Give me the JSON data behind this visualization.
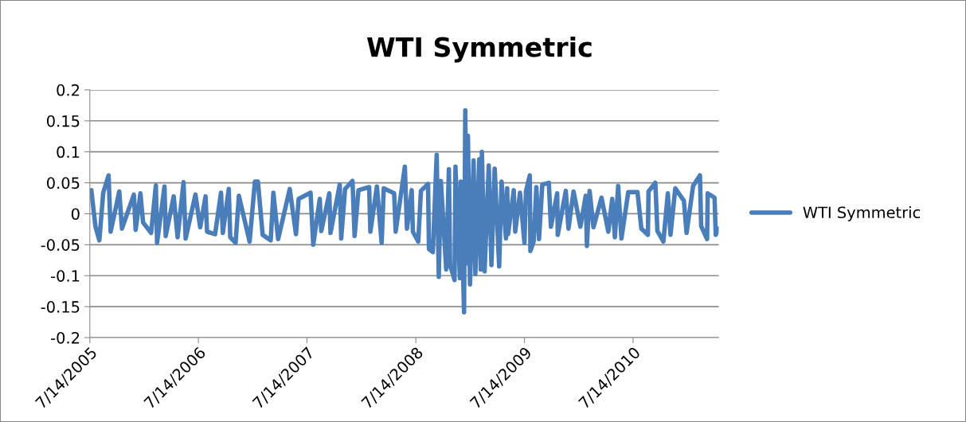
{
  "chart_data": {
    "type": "line",
    "title": "WTI Symmetric",
    "x": [
      "2005-07-19",
      "2005-08-02",
      "2005-08-15",
      "2005-08-28",
      "2005-09-15",
      "2005-09-22",
      "2005-10-21",
      "2005-10-30",
      "2005-12-09",
      "2005-12-15",
      "2005-12-31",
      "2006-01-09",
      "2006-02-05",
      "2006-02-21",
      "2006-02-25",
      "2006-03-22",
      "2006-03-26",
      "2006-04-22",
      "2006-05-05",
      "2006-05-25",
      "2006-06-01",
      "2006-07-04",
      "2006-07-20",
      "2006-08-07",
      "2006-08-12",
      "2006-09-08",
      "2006-09-28",
      "2006-10-04",
      "2006-10-24",
      "2006-10-29",
      "2006-11-16",
      "2006-11-27",
      "2007-01-02",
      "2007-01-20",
      "2007-01-30",
      "2007-02-15",
      "2007-03-14",
      "2007-03-23",
      "2007-04-08",
      "2007-05-17",
      "2007-06-07",
      "2007-06-16",
      "2007-07-26",
      "2007-08-04",
      "2007-08-26",
      "2007-08-31",
      "2007-09-27",
      "2007-10-01",
      "2007-11-01",
      "2007-11-06",
      "2007-11-19",
      "2007-12-14",
      "2007-12-21",
      "2008-01-03",
      "2008-02-08",
      "2008-02-12",
      "2008-03-05",
      "2008-03-21",
      "2008-03-28",
      "2008-05-02",
      "2008-05-07",
      "2008-06-07",
      "2008-06-14",
      "2008-06-30",
      "2008-07-04",
      "2008-07-22",
      "2008-07-31",
      "2008-08-24",
      "2008-08-27",
      "2008-09-09",
      "2008-09-22",
      "2008-09-29",
      "2008-10-06",
      "2008-10-24",
      "2008-11-02",
      "2008-11-06",
      "2008-11-21",
      "2008-11-24",
      "2008-12-09",
      "2008-12-12",
      "2008-12-23",
      "2008-12-27",
      "2009-01-01",
      "2009-01-05",
      "2009-01-12",
      "2009-01-24",
      "2009-01-30",
      "2009-02-12",
      "2009-02-17",
      "2009-02-21",
      "2009-03-02",
      "2009-03-16",
      "2009-03-25",
      "2009-04-05",
      "2009-04-20",
      "2009-04-28",
      "2009-05-13",
      "2009-05-17",
      "2009-05-20",
      "2009-06-08",
      "2009-06-13",
      "2009-06-29",
      "2009-07-14",
      "2009-07-19",
      "2009-08-01",
      "2009-08-03",
      "2009-08-14",
      "2009-08-23",
      "2009-09-01",
      "2009-09-12",
      "2009-10-04",
      "2009-10-11",
      "2009-11-01",
      "2009-11-03",
      "2009-11-30",
      "2009-12-09",
      "2009-12-26",
      "2010-01-18",
      "2010-02-05",
      "2010-02-09",
      "2010-02-18",
      "2010-03-03",
      "2010-03-30",
      "2010-04-22",
      "2010-05-05",
      "2010-05-14",
      "2010-05-25",
      "2010-06-05",
      "2010-06-28",
      "2010-07-29",
      "2010-08-11",
      "2010-09-02",
      "2010-09-04",
      "2010-09-27",
      "2010-10-04",
      "2010-10-24",
      "2010-11-08",
      "2010-11-17",
      "2010-12-03",
      "2011-01-01",
      "2011-01-10",
      "2011-02-01",
      "2011-02-24",
      "2011-02-28",
      "2011-03-20",
      "2011-03-22",
      "2011-04-14",
      "2011-04-18",
      "2011-04-27"
    ],
    "series": [
      {
        "name": "WTI Symmetric",
        "color": "#4a7ebb",
        "values": [
          0.038,
          -0.021,
          -0.043,
          0.034,
          0.062,
          -0.029,
          0.036,
          -0.024,
          0.031,
          -0.026,
          0.033,
          -0.014,
          -0.031,
          0.046,
          -0.047,
          0.044,
          -0.036,
          0.028,
          -0.038,
          0.051,
          -0.04,
          0.031,
          -0.022,
          0.028,
          -0.029,
          -0.033,
          0.034,
          -0.031,
          0.04,
          -0.038,
          -0.047,
          0.029,
          -0.045,
          0.052,
          0.052,
          -0.034,
          -0.043,
          0.034,
          -0.041,
          0.04,
          -0.033,
          0.024,
          0.034,
          -0.05,
          0.024,
          -0.028,
          0.033,
          -0.031,
          0.047,
          -0.04,
          0.04,
          0.053,
          -0.036,
          0.038,
          0.043,
          -0.029,
          0.044,
          -0.047,
          0.041,
          0.033,
          -0.029,
          0.076,
          -0.024,
          0.038,
          -0.029,
          -0.045,
          0.037,
          0.048,
          -0.057,
          -0.062,
          0.095,
          -0.102,
          0.053,
          -0.09,
          0.072,
          -0.083,
          -0.107,
          0.076,
          -0.104,
          0.052,
          -0.159,
          0.167,
          -0.08,
          0.126,
          -0.114,
          0.086,
          -0.097,
          0.088,
          -0.09,
          0.1,
          -0.093,
          0.078,
          -0.083,
          0.073,
          -0.085,
          0.052,
          -0.04,
          0.041,
          -0.033,
          0.038,
          -0.029,
          0.034,
          -0.047,
          0.036,
          0.062,
          -0.06,
          -0.045,
          0.043,
          -0.041,
          0.047,
          0.05,
          -0.021,
          0.033,
          -0.034,
          0.037,
          -0.024,
          0.036,
          -0.021,
          0.029,
          -0.052,
          0.037,
          -0.022,
          0.026,
          -0.029,
          0.024,
          -0.038,
          0.045,
          -0.04,
          0.035,
          0.035,
          -0.024,
          -0.034,
          0.036,
          0.05,
          -0.028,
          -0.045,
          0.033,
          -0.034,
          0.041,
          0.021,
          -0.031,
          0.045,
          0.062,
          -0.02,
          -0.041,
          0.033,
          0.026,
          -0.034,
          -0.024
        ]
      }
    ],
    "xlim": [
      "2005-07-14",
      "2011-04-28"
    ],
    "xticks": [
      {
        "value": "2005-07-14",
        "label": "7/14/2005"
      },
      {
        "value": "2006-07-14",
        "label": "7/14/2006"
      },
      {
        "value": "2007-07-14",
        "label": "7/14/2007"
      },
      {
        "value": "2008-07-14",
        "label": "7/14/2008"
      },
      {
        "value": "2009-07-14",
        "label": "7/14/2009"
      },
      {
        "value": "2010-07-14",
        "label": "7/14/2010"
      }
    ],
    "ylim": [
      -0.2,
      0.2
    ],
    "yticks": [
      -0.2,
      -0.15,
      -0.1,
      -0.05,
      0,
      0.05,
      0.1,
      0.15,
      0.2
    ],
    "grid": "y",
    "legend": "right",
    "marker": "none",
    "line_style": "solid"
  }
}
